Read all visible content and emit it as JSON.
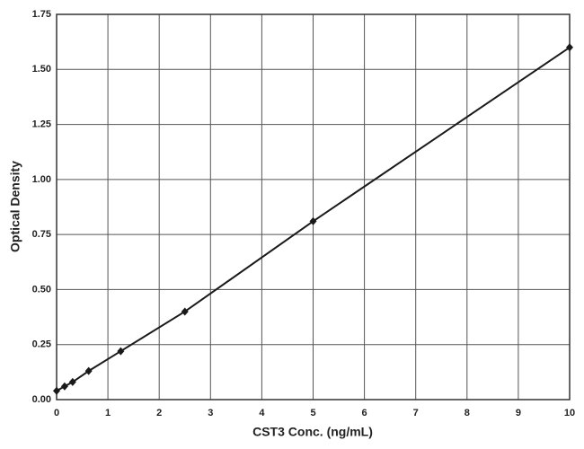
{
  "chart_data": {
    "type": "line",
    "xlabel": "CST3 Conc. (ng/mL)",
    "ylabel": "Optical Density",
    "x": [
      0,
      0.156,
      0.3125,
      0.625,
      1.25,
      2.5,
      5,
      10
    ],
    "series": [
      {
        "color": "#1a1a1a",
        "values": [
          0.04,
          0.06,
          0.08,
          0.13,
          0.22,
          0.4,
          0.81,
          1.6
        ]
      }
    ],
    "xlim": [
      0,
      10
    ],
    "xticks": [
      0,
      1,
      2,
      3,
      4,
      5,
      6,
      7,
      8,
      9,
      10
    ],
    "ylim": [
      0,
      1.75
    ],
    "yticks": [
      {
        "value": 0,
        "label": "0.00"
      },
      {
        "value": 0.25,
        "label": "0.25"
      },
      {
        "value": 0.5,
        "label": "0.50"
      },
      {
        "value": 0.75,
        "label": "0.75"
      },
      {
        "value": 1,
        "label": "1.00"
      },
      {
        "value": 1.25,
        "label": "1.25"
      },
      {
        "value": 1.5,
        "label": "1.50"
      },
      {
        "value": 1.75,
        "label": "1.75"
      }
    ],
    "grid": true
  }
}
